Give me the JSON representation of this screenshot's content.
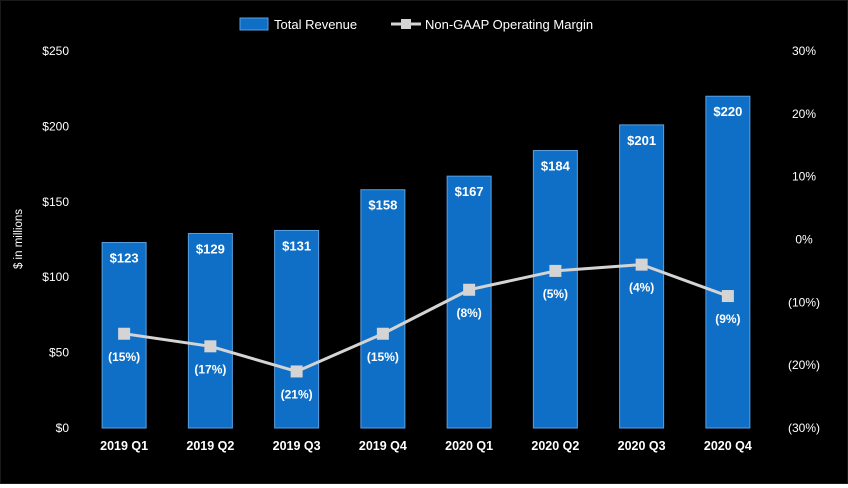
{
  "chart_data": {
    "type": "bar",
    "categories": [
      "2019 Q1",
      "2019 Q2",
      "2019 Q3",
      "2019 Q4",
      "2020 Q1",
      "2020 Q2",
      "2020 Q3",
      "2020 Q4"
    ],
    "series": [
      {
        "name": "Total Revenue",
        "type": "bar",
        "axis": "left",
        "values": [
          123,
          129,
          131,
          158,
          167,
          184,
          201,
          220
        ],
        "labels": [
          "$123",
          "$129",
          "$131",
          "$158",
          "$167",
          "$184",
          "$201",
          "$220"
        ]
      },
      {
        "name": "Non-GAAP Operating Margin",
        "type": "line",
        "axis": "right",
        "values": [
          -15,
          -17,
          -21,
          -15,
          -8,
          -5,
          -4,
          -9
        ],
        "labels": [
          "(15%)",
          "(17%)",
          "(21%)",
          "(15%)",
          "(8%)",
          "(5%)",
          "(4%)",
          "(9%)"
        ]
      }
    ],
    "ylabel": "$ in millions",
    "ylim": [
      0,
      250
    ],
    "y_ticks": [
      0,
      50,
      100,
      150,
      200,
      250
    ],
    "y_tick_labels": [
      "$0",
      "$50",
      "$100",
      "$150",
      "$200",
      "$250"
    ],
    "y2lim": [
      -30,
      30
    ],
    "y2_ticks": [
      -30,
      -20,
      -10,
      0,
      10,
      20,
      30
    ],
    "y2_tick_labels": [
      "(30%)",
      "(20%)",
      "(10%)",
      "0%",
      "10%",
      "20%",
      "30%"
    ],
    "legend_position": "top-center",
    "grid": false,
    "colors": {
      "background": "#000000",
      "bar": "#0f6fc6",
      "bar_border": "#5aa0e0",
      "line": "#d4d4d4",
      "marker": "#d4d4d4",
      "text": "#ffffff"
    }
  }
}
